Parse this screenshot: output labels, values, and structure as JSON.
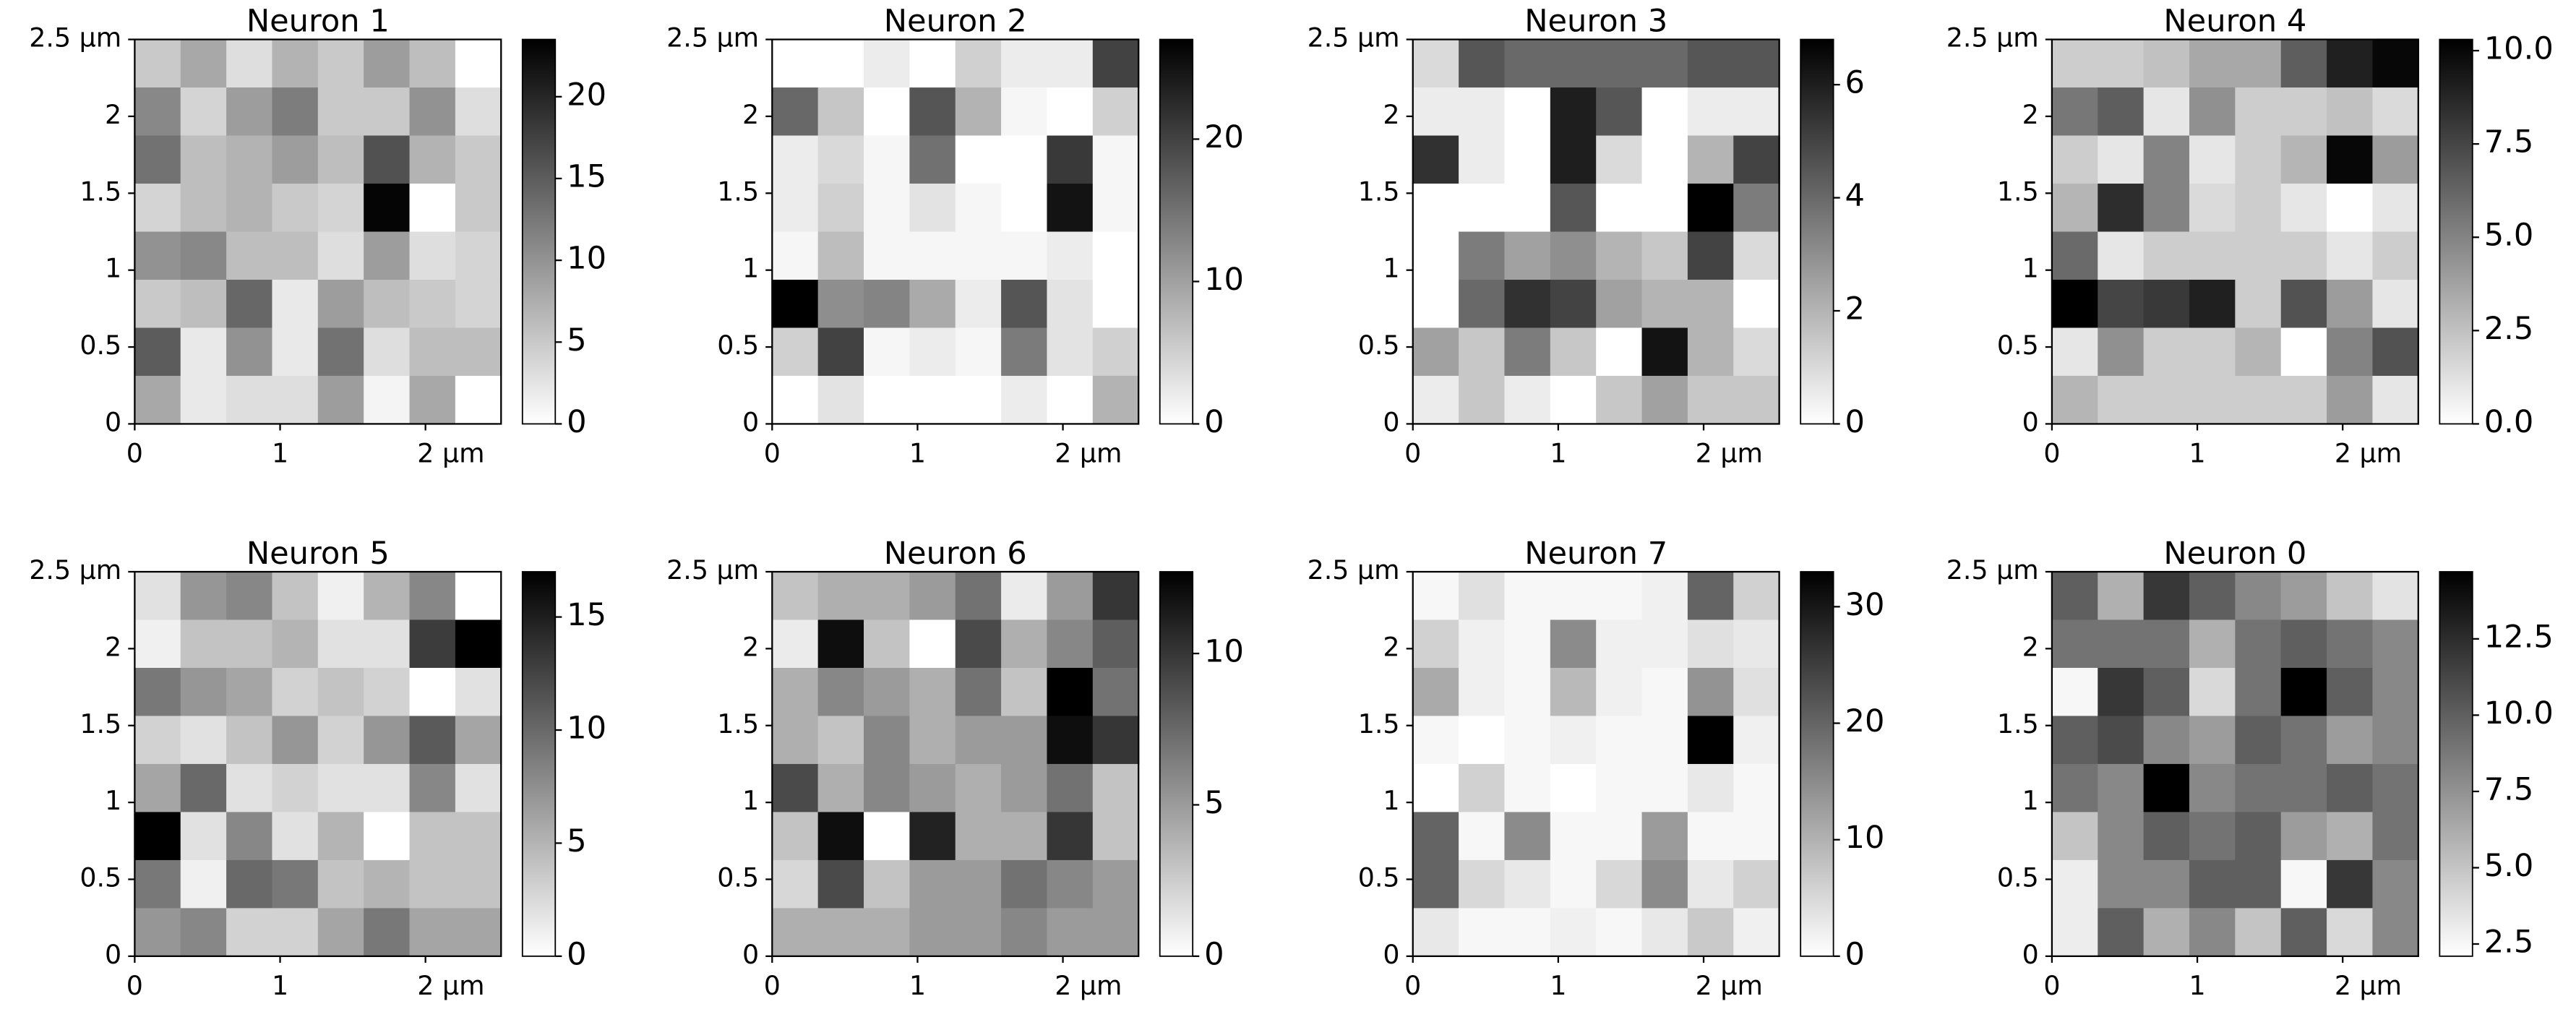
{
  "chart_data": [
    {
      "type": "heatmap",
      "title": "Neuron 1",
      "xlim": [
        0,
        2.52
      ],
      "ylim": [
        0,
        2.5
      ],
      "xticks": [
        0,
        1,
        {
          "value": 2,
          "label": "2 µm"
        }
      ],
      "yticks": [
        0,
        0.5,
        1,
        1.5,
        2,
        {
          "value": 2.5,
          "label": "2.5 µm"
        }
      ],
      "vlim": [
        0,
        23.5
      ],
      "cticks": [
        0,
        5,
        10,
        15,
        20
      ],
      "values": [
        [
          5,
          8,
          3,
          7,
          5,
          9,
          6,
          0
        ],
        [
          11,
          4,
          9,
          12,
          5,
          5,
          10,
          3
        ],
        [
          13,
          6,
          7,
          9,
          6,
          16,
          7,
          5
        ],
        [
          4,
          6,
          7,
          5,
          4,
          23,
          0,
          5
        ],
        [
          10,
          11,
          6,
          6,
          3,
          9,
          3,
          4
        ],
        [
          5,
          6,
          14,
          2,
          9,
          6,
          5,
          4
        ],
        [
          15,
          2,
          10,
          2,
          13,
          3,
          6,
          6
        ],
        [
          8,
          2,
          3,
          3,
          9,
          1,
          8,
          0
        ]
      ]
    },
    {
      "type": "heatmap",
      "title": "Neuron 2",
      "xlim": [
        0,
        2.52
      ],
      "ylim": [
        0,
        2.5
      ],
      "xticks": [
        0,
        1,
        {
          "value": 2,
          "label": "2 µm"
        }
      ],
      "yticks": [
        0,
        0.5,
        1,
        1.5,
        2,
        {
          "value": 2.5,
          "label": "2.5 µm"
        }
      ],
      "vlim": [
        0,
        27
      ],
      "cticks": [
        0,
        10,
        20
      ],
      "values": [
        [
          0,
          0,
          2,
          0,
          5,
          2,
          2,
          20
        ],
        [
          16,
          6,
          0,
          18,
          8,
          1,
          0,
          5
        ],
        [
          2,
          4,
          1,
          15,
          0,
          0,
          21,
          1
        ],
        [
          2,
          5,
          1,
          3,
          1,
          0,
          25,
          1
        ],
        [
          1,
          7,
          1,
          1,
          1,
          1,
          2,
          0
        ],
        [
          27,
          12,
          13,
          9,
          2,
          18,
          3,
          0
        ],
        [
          5,
          20,
          1,
          2,
          1,
          14,
          3,
          5
        ],
        [
          0,
          3,
          0,
          0,
          0,
          2,
          0,
          8
        ]
      ]
    },
    {
      "type": "heatmap",
      "title": "Neuron 3",
      "xlim": [
        0,
        2.52
      ],
      "ylim": [
        0,
        2.5
      ],
      "xticks": [
        0,
        1,
        {
          "value": 2,
          "label": "2 µm"
        }
      ],
      "yticks": [
        0,
        0.5,
        1,
        1.5,
        2,
        {
          "value": 2.5,
          "label": "2.5 µm"
        }
      ],
      "vlim": [
        0,
        6.8
      ],
      "cticks": [
        0,
        2,
        4,
        6
      ],
      "values": [
        [
          1,
          4.5,
          4,
          4,
          4,
          4,
          4.5,
          4.5
        ],
        [
          0.5,
          0.5,
          0,
          6,
          4.5,
          0,
          0.5,
          0.5
        ],
        [
          5.5,
          0.5,
          0,
          6,
          1,
          0,
          2,
          5
        ],
        [
          0,
          0,
          0,
          4.5,
          0,
          0,
          6.8,
          3.5
        ],
        [
          0,
          3.5,
          2.5,
          3,
          2,
          1.5,
          5,
          1
        ],
        [
          0,
          4,
          5.5,
          5,
          2.5,
          2,
          2,
          0
        ],
        [
          2.5,
          1.5,
          3.5,
          1.5,
          0,
          6.3,
          2,
          1
        ],
        [
          0.5,
          1.5,
          0.5,
          0,
          1.5,
          2.5,
          1.5,
          1.5
        ]
      ]
    },
    {
      "type": "heatmap",
      "title": "Neuron 4",
      "xlim": [
        0,
        2.52
      ],
      "ylim": [
        0,
        2.5
      ],
      "xticks": [
        0,
        1,
        {
          "value": 2,
          "label": "2 µm"
        }
      ],
      "yticks": [
        0,
        0.5,
        1,
        1.5,
        2,
        {
          "value": 2.5,
          "label": "2.5 µm"
        }
      ],
      "vlim": [
        0,
        10.3
      ],
      "cticks": [
        {
          "value": 0,
          "label": "0.0"
        },
        2.5,
        {
          "value": 5,
          "label": "5.0"
        },
        7.5,
        {
          "value": 10,
          "label": "10.0"
        }
      ],
      "values": [
        [
          2,
          2,
          2.5,
          3.5,
          3.5,
          6.5,
          9,
          10
        ],
        [
          5.5,
          6.5,
          1,
          4.5,
          2,
          2,
          2.5,
          1.5
        ],
        [
          2,
          1,
          5,
          1,
          2,
          3,
          10,
          4
        ],
        [
          3,
          8.5,
          5,
          1.5,
          2,
          1,
          0,
          1
        ],
        [
          6,
          1,
          2,
          2,
          2,
          2,
          1,
          2
        ],
        [
          10.3,
          7.5,
          8,
          9,
          2,
          7,
          4,
          1
        ],
        [
          1,
          4.5,
          2,
          2,
          3,
          0,
          5,
          7
        ],
        [
          3,
          2,
          2,
          2,
          2,
          2,
          4,
          1
        ]
      ]
    },
    {
      "type": "heatmap",
      "title": "Neuron 5",
      "xlim": [
        0,
        2.52
      ],
      "ylim": [
        0,
        2.5
      ],
      "xticks": [
        0,
        1,
        {
          "value": 2,
          "label": "2 µm"
        }
      ],
      "yticks": [
        0,
        0.5,
        1,
        1.5,
        2,
        {
          "value": 2.5,
          "label": "2.5 µm"
        }
      ],
      "vlim": [
        0,
        17
      ],
      "cticks": [
        0,
        5,
        10,
        15
      ],
      "values": [
        [
          2,
          7,
          8,
          4,
          1,
          5,
          8,
          0
        ],
        [
          1,
          4,
          4,
          5,
          2,
          2,
          13,
          17
        ],
        [
          9,
          7,
          6,
          3,
          4,
          3,
          0,
          2
        ],
        [
          3,
          2,
          4,
          7,
          3,
          7,
          11,
          6
        ],
        [
          6,
          10,
          2,
          3,
          2,
          2,
          8,
          2
        ],
        [
          17,
          2,
          8,
          2,
          5,
          0,
          4,
          4
        ],
        [
          9,
          1,
          10,
          9,
          4,
          5,
          4,
          4
        ],
        [
          7,
          8,
          3,
          3,
          6,
          9,
          6,
          6
        ]
      ]
    },
    {
      "type": "heatmap",
      "title": "Neuron 6",
      "xlim": [
        0,
        2.52
      ],
      "ylim": [
        0,
        2.5
      ],
      "xticks": [
        0,
        1,
        {
          "value": 2,
          "label": "2 µm"
        }
      ],
      "yticks": [
        0,
        0.5,
        1,
        1.5,
        2,
        {
          "value": 2.5,
          "label": "2.5 µm"
        }
      ],
      "vlim": [
        0,
        12.7
      ],
      "cticks": [
        0,
        5,
        10
      ],
      "values": [
        [
          3,
          4,
          4,
          5,
          7,
          1,
          5,
          10
        ],
        [
          1,
          12,
          3,
          0,
          9,
          4,
          6,
          8
        ],
        [
          4,
          6,
          5,
          4,
          7,
          3,
          12.7,
          7
        ],
        [
          4,
          3,
          6,
          4,
          5,
          5,
          12,
          10
        ],
        [
          9,
          4,
          6,
          5,
          4,
          5,
          7,
          3
        ],
        [
          3,
          12,
          0,
          11,
          4,
          4,
          10,
          3
        ],
        [
          2,
          9,
          3,
          5,
          5,
          7,
          6,
          5
        ],
        [
          4,
          4,
          4,
          5,
          5,
          6,
          5,
          5
        ]
      ]
    },
    {
      "type": "heatmap",
      "title": "Neuron 7",
      "xlim": [
        0,
        2.52
      ],
      "ylim": [
        0,
        2.5
      ],
      "xticks": [
        0,
        1,
        {
          "value": 2,
          "label": "2 µm"
        }
      ],
      "yticks": [
        0,
        0.5,
        1,
        1.5,
        2,
        {
          "value": 2.5,
          "label": "2.5 µm"
        }
      ],
      "vlim": [
        0,
        33
      ],
      "cticks": [
        0,
        10,
        20,
        30
      ],
      "values": [
        [
          1,
          4,
          1,
          1,
          1,
          2,
          20,
          6
        ],
        [
          6,
          2,
          1,
          15,
          2,
          2,
          4,
          3
        ],
        [
          11,
          2,
          1,
          9,
          2,
          1,
          14,
          4
        ],
        [
          1,
          0,
          1,
          2,
          1,
          1,
          33,
          2
        ],
        [
          0,
          6,
          1,
          0,
          1,
          1,
          3,
          1
        ],
        [
          20,
          1,
          15,
          1,
          1,
          13,
          1,
          1
        ],
        [
          20,
          5,
          3,
          1,
          5,
          15,
          3,
          6
        ],
        [
          3,
          1,
          1,
          2,
          1,
          3,
          7,
          2
        ]
      ]
    },
    {
      "type": "heatmap",
      "title": "Neuron 0",
      "xlim": [
        0,
        2.52
      ],
      "ylim": [
        0,
        2.5
      ],
      "xticks": [
        0,
        1,
        {
          "value": 2,
          "label": "2 µm"
        }
      ],
      "yticks": [
        0,
        0.5,
        1,
        1.5,
        2,
        {
          "value": 2.5,
          "label": "2.5 µm"
        }
      ],
      "vlim": [
        2.1,
        14.7
      ],
      "cticks": [
        2.5,
        {
          "value": 5,
          "label": "5.0"
        },
        7.5,
        {
          "value": 10,
          "label": "10.0"
        },
        12.5
      ],
      "values": [
        [
          10,
          6,
          12,
          10,
          8,
          7,
          5,
          3.5
        ],
        [
          9,
          9,
          9,
          6,
          9,
          10,
          9,
          8
        ],
        [
          2.5,
          12,
          10,
          4,
          9,
          14.7,
          10,
          8
        ],
        [
          10,
          11,
          8,
          7,
          10,
          9,
          7,
          8
        ],
        [
          9,
          8,
          14.7,
          8,
          9,
          9,
          10,
          9
        ],
        [
          5,
          8,
          10,
          9,
          10,
          7,
          6,
          9
        ],
        [
          3,
          8,
          8,
          10,
          10,
          2.5,
          12,
          8
        ],
        [
          3,
          10,
          6,
          8,
          5,
          10,
          4,
          8
        ]
      ]
    }
  ]
}
